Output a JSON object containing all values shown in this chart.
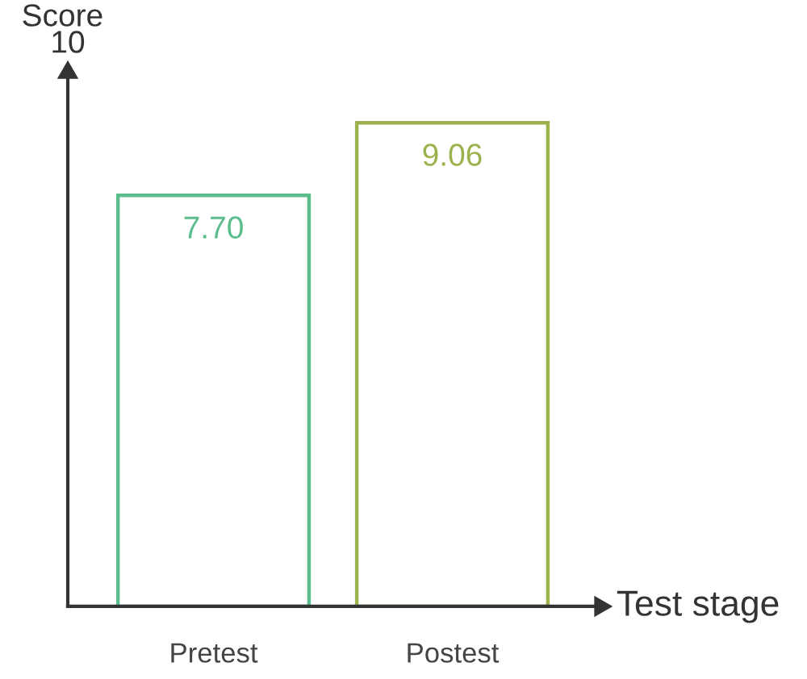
{
  "chart_data": {
    "type": "bar",
    "ylabel": "Score",
    "xlabel": "Test stage",
    "categories": [
      "Pretest",
      "Postest"
    ],
    "values": [
      7.7,
      9.06
    ],
    "value_labels": [
      "7.70",
      "9.06"
    ],
    "colors": [
      "#5cbd8c",
      "#9cb24c"
    ],
    "ylim": [
      0,
      10
    ],
    "annotations": [
      {
        "text": "10",
        "y": 10
      }
    ],
    "grid": false,
    "legend": false
  }
}
